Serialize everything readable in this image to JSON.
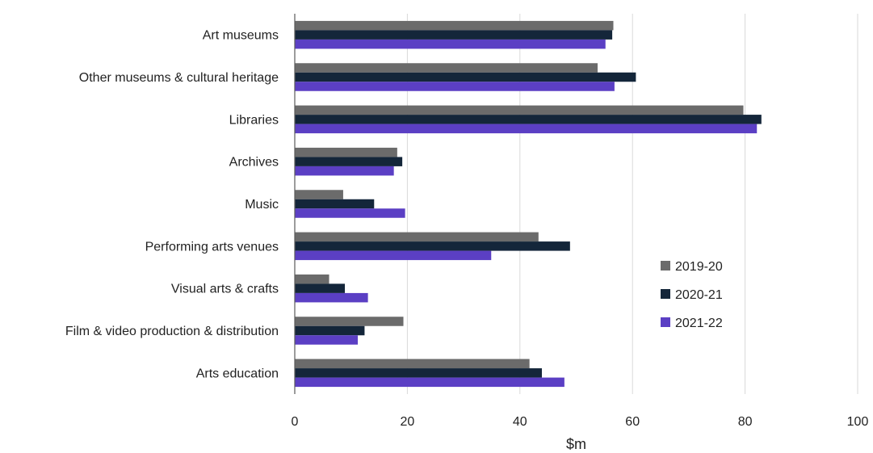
{
  "chart_data": {
    "type": "bar",
    "orientation": "horizontal",
    "title": "",
    "xlabel": "$m",
    "ylabel": "",
    "xlim": [
      0,
      100
    ],
    "x_ticks": [
      0,
      20,
      40,
      60,
      80,
      100
    ],
    "grid": "vertical gridlines on",
    "legend_position": "right, inside plot",
    "categories": [
      "Art museums",
      "Other museums & cultural heritage",
      "Libraries",
      "Archives",
      "Music",
      "Performing arts venues",
      "Visual arts & crafts",
      "Film & video production & distribution",
      "Arts education"
    ],
    "series": [
      {
        "name": "2019-20",
        "color": "#6b6b6b",
        "values": [
          56.6,
          53.8,
          79.7,
          18.2,
          8.6,
          43.3,
          6.1,
          19.3,
          41.7
        ]
      },
      {
        "name": "2020-21",
        "color": "#14263a",
        "values": [
          56.4,
          60.6,
          82.9,
          19.1,
          14.1,
          48.9,
          8.9,
          12.4,
          43.9
        ]
      },
      {
        "name": "2021-22",
        "color": "#5b3fc4",
        "values": [
          55.2,
          56.8,
          82.1,
          17.6,
          19.6,
          34.9,
          13.0,
          11.2,
          47.9
        ]
      }
    ]
  }
}
